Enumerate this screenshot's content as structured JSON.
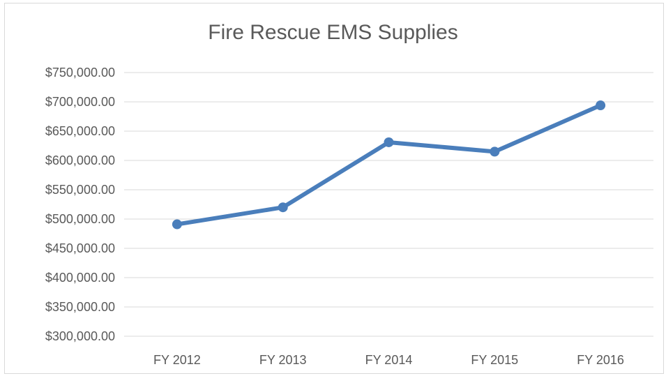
{
  "chart_data": {
    "type": "line",
    "title": "Fire Rescue EMS Supplies",
    "xlabel": "",
    "ylabel": "",
    "categories": [
      "FY 2012",
      "FY 2013",
      "FY 2014",
      "FY 2015",
      "FY 2016"
    ],
    "series": [
      {
        "values": [
          491000,
          520000,
          631000,
          615000,
          694000
        ],
        "color": "#4a7ebb"
      }
    ],
    "ylim": [
      300000,
      750000
    ],
    "yticks": [
      300000,
      350000,
      400000,
      450000,
      500000,
      550000,
      600000,
      650000,
      700000,
      750000
    ],
    "ytick_labels": [
      "$300,000.00",
      "$350,000.00",
      "$400,000.00",
      "$450,000.00",
      "$500,000.00",
      "$550,000.00",
      "$600,000.00",
      "$650,000.00",
      "$700,000.00",
      "$750,000.00"
    ],
    "grid": true,
    "legend": "none",
    "gridline_color": "#d9d9d9"
  }
}
